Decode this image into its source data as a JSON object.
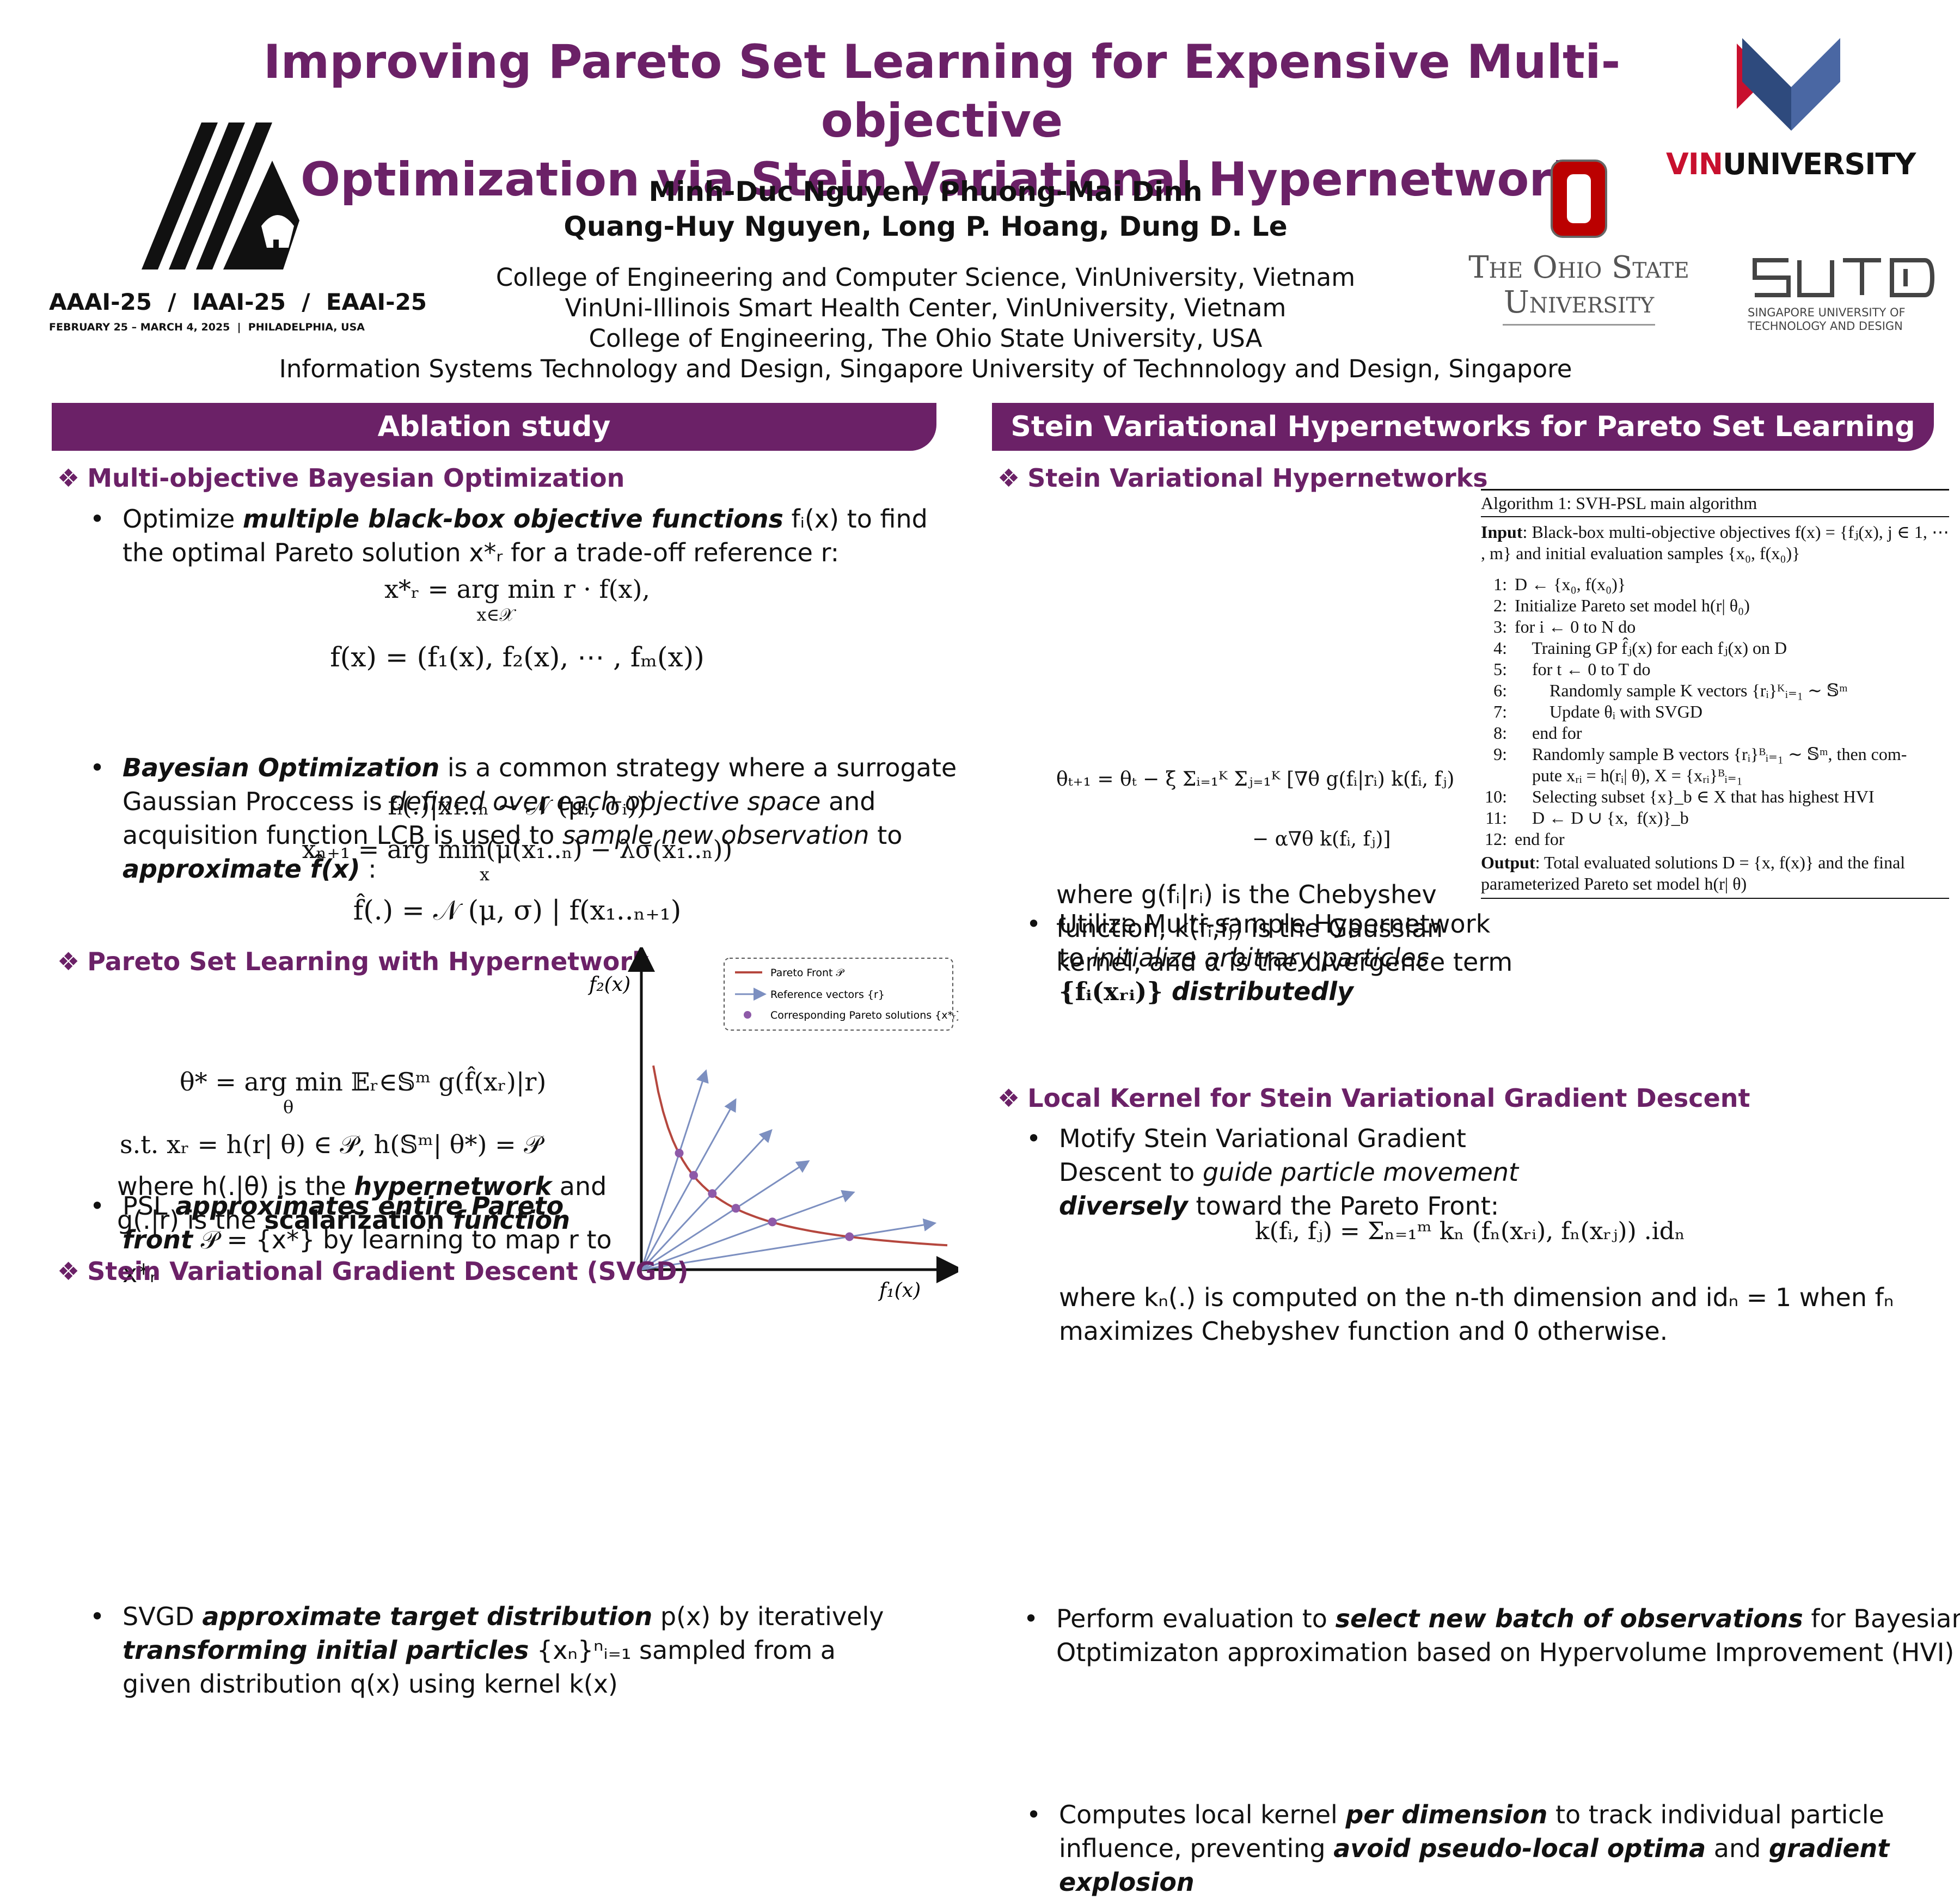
{
  "header": {
    "title_line1": "Improving Pareto Set Learning for Expensive Multi-objective",
    "title_line2": "Optimization via Stein Variational Hypernetwork",
    "authors_line1": "Minh-Duc Nguyen, Phuong-Mai Dinh",
    "authors_line2": "Quang-Huy Nguyen, Long P. Hoang, Dung D. Le",
    "affiliations": [
      "College of Engineering and Computer Science, VinUniversity, Vietnam",
      "VinUni-Illinois Smart Health Center, VinUniversity, Vietnam",
      "College of Engineering, The Ohio State University, USA",
      "Information Systems Technology and Design, Singapore University of Technnology and Design, Singapore"
    ]
  },
  "logos": {
    "aaai_line": "AAAI-25  /  IAAI-25  /  EAAI-25",
    "aaai_dates": "FEBRUARY 25 – MARCH 4, 2025  |  PHILADELPHIA, USA",
    "vin_part1": "VIN",
    "vin_part2": "UNIVERSITY",
    "osu_line1": "The Ohio State",
    "osu_line2": "University",
    "sutd_sub1": "SINGAPORE UNIVERSITY OF",
    "sutd_sub2": "TECHNOLOGY AND DESIGN",
    "colors": {
      "purple": "#6b2167",
      "osu_red": "#bb0000",
      "vin_red": "#c8102e",
      "vin_blue": "#2e4a7d"
    }
  },
  "left": {
    "band": "Ablation study",
    "mobo": {
      "heading": "Multi-objective Bayesian Optimization",
      "b1_pre": "Optimize ",
      "b1_em": "multiple black-box objective functions",
      "b1_post": " fᵢ(x) to find the optimal Pareto solution x*ᵣ for a trade-off reference r:",
      "eq1": "x*ᵣ = arg min r · f(x),",
      "eq1_sub": "x∈𝒳",
      "eq2": "f(x) = (f₁(x), f₂(x), ⋯ , fₘ(x))",
      "b2_em1": "Bayesian Optimization",
      "b2_t1": " is a common strategy where a surrogate Gaussian Proccess is ",
      "b2_em2": "defined over each objective space",
      "b2_t2": " and acquisition function LCB is used to ",
      "b2_em3": "sample new observation",
      "b2_t3": " to ",
      "b2_em4": "approximate f̂(x)",
      "b2_t4": " :",
      "eq3": "fᵢ(.)|x₁..ₙ ∼ 𝒩 (μᵢ,  σᵢ))",
      "eq4": "xₙ₊₁ = arg min(μ(x₁..ₙ) − λσ(x₁..ₙ))",
      "eq4_sub": "x",
      "eq5": "f̂(.) = 𝒩 (μ,  σ) | f(x₁..ₙ₊₁)"
    },
    "psl": {
      "heading": "Pareto Set Learning with Hypernetwork",
      "b1_pre": "PSL ",
      "b1_em": "approximates entire Pareto front",
      "b1_post": " 𝒫 = {x*} by learning to map r to x*ᵣ",
      "eq1": "θ* = arg min 𝔼ᵣ∈𝕊ᵐ g(f̂(xᵣ)|r)",
      "eq1_sub": "θ",
      "eq2": "s.t.   xᵣ = h(r| θ) ∈ 𝒫,  h(𝕊ᵐ| θ*) = 𝒫",
      "w1": "where h(.|θ) is the ",
      "w1_em": "hypernetwork",
      "w1_post": " and",
      "w2": "g(.|r) is the ",
      "w2_b": "scalarization",
      "w2_em": " function"
    },
    "svgd": {
      "heading": "Stein Variational Gradient Descent (SVGD)",
      "t1": "SVGD ",
      "em1": "approximate target distribution",
      "t2": " p(x) by iteratively ",
      "em2": "transforming initial particles",
      "t3": " {xₙ}ⁿᵢ₌₁ sampled from a given distribution q(x) using kernel k(x)"
    }
  },
  "chart_data": {
    "type": "line",
    "xlabel": "f₁(x)",
    "ylabel": "f₂(x)",
    "legend": [
      "Pareto Front 𝒫",
      "Reference vectors {r}",
      "Corresponding Pareto solutions {x*ᵣ}"
    ],
    "legend_position": "top-right",
    "series_colors": {
      "front": "#b5473e",
      "vectors": "#7c8fc0",
      "points": "#8e5aa8"
    },
    "reference_vectors": [
      {
        "angle_deg": 72
      },
      {
        "angle_deg": 61
      },
      {
        "angle_deg": 47
      },
      {
        "angle_deg": 33
      },
      {
        "angle_deg": 20
      },
      {
        "angle_deg": 9
      }
    ]
  },
  "right": {
    "band": "Stein Variational Hypernetworks for Pareto Set Learning",
    "svh": {
      "heading": "Stein Variational Hypernetworks",
      "b1_l1": "Utilize Multi-sample Hypernetwork",
      "b1_l2_pre": "to ",
      "b1_l2_em": "initialize arbitrary particles",
      "b1_l3_math": "{fᵢ(xᵣᵢ)}",
      "b1_l3_em": " distributedly",
      "b2_l1": "Motify Stein Variational Gradient",
      "b2_l2_pre": "Descent to ",
      "b2_l2_em": "guide particle movement",
      "b2_l3_em": "diversely",
      "b2_l3_post": " toward the Pareto Front:",
      "eq1": "θₜ₊₁ = θₜ − ξ Σᵢ₌₁ᴷ Σⱼ₌₁ᴷ [∇θ g(fᵢ|rᵢ) k(fᵢ, fⱼ)",
      "eq2": "− α∇θ k(fᵢ, fⱼ)]",
      "w1": "where g(fᵢ|rᵢ) is the Chebyshev",
      "w2": "function, k(fᵢ,fⱼ) is the Gaussian",
      "w3": "kernel, and α is the divergence term",
      "b3_pre": "Perform evaluation to ",
      "b3_em": "select new batch of observations",
      "b3_post1": " for Bayesian",
      "b3_post2": "Otptimizaton approximation based on Hypervolume Improvement (HVI)"
    },
    "algorithm": {
      "title": "Algorithm 1: SVH-PSL main algorithm",
      "input_label": "Input",
      "input_text": ": Black-box multi-objective objectives f(x) = {fⱼ(x),  j ∈ 1, ⋯ , m} and initial evaluation samples {x₀, f(x₀)}",
      "lines": [
        {
          "n": "1:",
          "t": "D ← {x₀, f(x₀)}"
        },
        {
          "n": "2:",
          "t": "Initialize Pareto set model h(r| θ₀)"
        },
        {
          "n": "3:",
          "t": "for i ← 0 to N do"
        },
        {
          "n": "4:",
          "t": "    Training GP f̂ⱼ(x) for each fⱼ(x) on D"
        },
        {
          "n": "5:",
          "t": "    for t ← 0 to T do"
        },
        {
          "n": "6:",
          "t": "        Randomly sample K vectors {rᵢ}ᴷᵢ₌₁ ∼ 𝕊ᵐ"
        },
        {
          "n": "7:",
          "t": "        Update θᵢ with SVGD"
        },
        {
          "n": "8:",
          "t": "    end for"
        },
        {
          "n": "9:",
          "t": "    Randomly sample B vectors {rᵢ}ᴮᵢ₌₁ ∼ 𝕊ᵐ, then com-"
        },
        {
          "n": "",
          "t": "    pute xᵣᵢ = h(rᵢ| θ), X = {xᵣᵢ}ᴮᵢ₌₁"
        },
        {
          "n": "10:",
          "t": "    Selecting subset {x}_b ∈ X that has highest HVI"
        },
        {
          "n": "11:",
          "t": "    D ← D ∪ {x,  f(x)}_b"
        },
        {
          "n": "12:",
          "t": "end for"
        }
      ],
      "output_label": "Output",
      "output_text": ": Total evaluated solutions D = {x,  f(x)} and the final parameterized Pareto set model h(r| θ)"
    },
    "local": {
      "heading": "Local Kernel for Stein Variational Gradient Descent",
      "b1_l1_pre": "Computes local kernel ",
      "b1_l1_em": "per dimension",
      "b1_l1_post": " to track individual particle",
      "b1_l2_pre": "influence, preventing ",
      "b1_l2_em1": "avoid pseudo-local optima",
      "b1_l2_mid": " and ",
      "b1_l2_em2": "gradient explosion",
      "eq": "k(fᵢ, fⱼ) = Σₙ₌₁ᵐ kₙ (fₙ(xᵣᵢ), fₙ(xᵣⱼ)) .idₙ",
      "w1": "where kₙ(.) is computed on the n-th dimension and idₙ = 1 when fₙ",
      "w2": "maximizes Chebyshev function and 0 otherwise."
    }
  }
}
